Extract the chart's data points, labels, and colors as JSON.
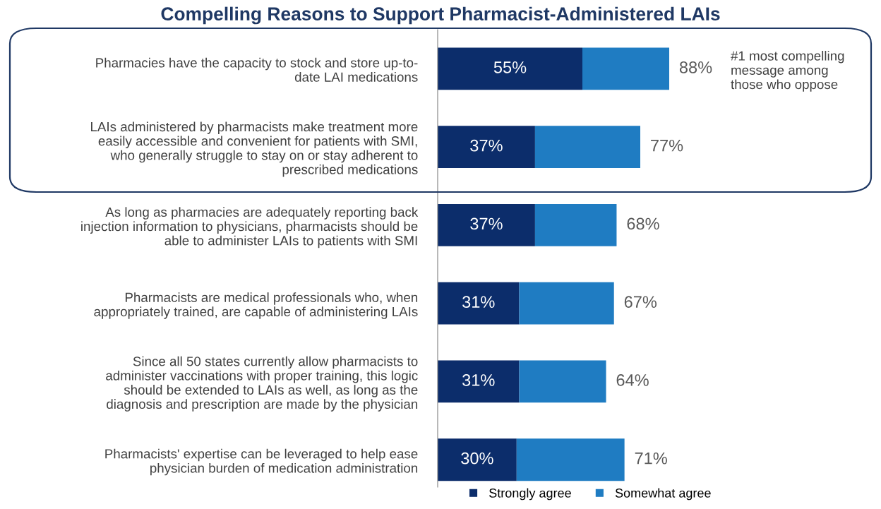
{
  "chart_data": {
    "type": "bar",
    "orientation": "horizontal",
    "stacked": true,
    "title": "Compelling Reasons to Support Pharmacist-Administered LAIs",
    "categories": [
      "Pharmacies have the capacity to stock and store up-to-\ndate LAI medications",
      "LAIs administered by pharmacists make treatment more\neasily accessible and convenient for patients with SMI,\nwho generally struggle to stay on or stay adherent to\nprescribed medications",
      "As long as pharmacies are adequately reporting back\ninjection information to physicians, pharmacists should be\nable to administer LAIs to patients with SMI",
      "Pharmacists are medical professionals who, when\nappropriately trained, are capable of administering LAIs",
      "Since all 50 states currently allow pharmacists to\nadminister vaccinations with proper training, this logic\nshould be extended to LAIs as well, as long as the\ndiagnosis and prescription are made by the physician",
      "Pharmacists' expertise can be leveraged to help ease\nphysician burden of medication administration"
    ],
    "series": [
      {
        "name": "Strongly agree",
        "color": "#0c2d6b",
        "values": [
          55,
          37,
          37,
          31,
          31,
          30
        ],
        "value_labels": [
          "55%",
          "37%",
          "37%",
          "31%",
          "31%",
          "30%"
        ]
      },
      {
        "name": "Somewhat agree",
        "color": "#1f7cc2",
        "values": [
          33,
          40,
          31,
          36,
          33,
          41
        ]
      }
    ],
    "totals": [
      "88%",
      "77%",
      "68%",
      "67%",
      "64%",
      "71%"
    ],
    "tick_labels": "y",
    "grid": false,
    "legend": "bottom",
    "annotations": [
      "#1 most compelling\nmessage among\nthose who oppose"
    ]
  }
}
